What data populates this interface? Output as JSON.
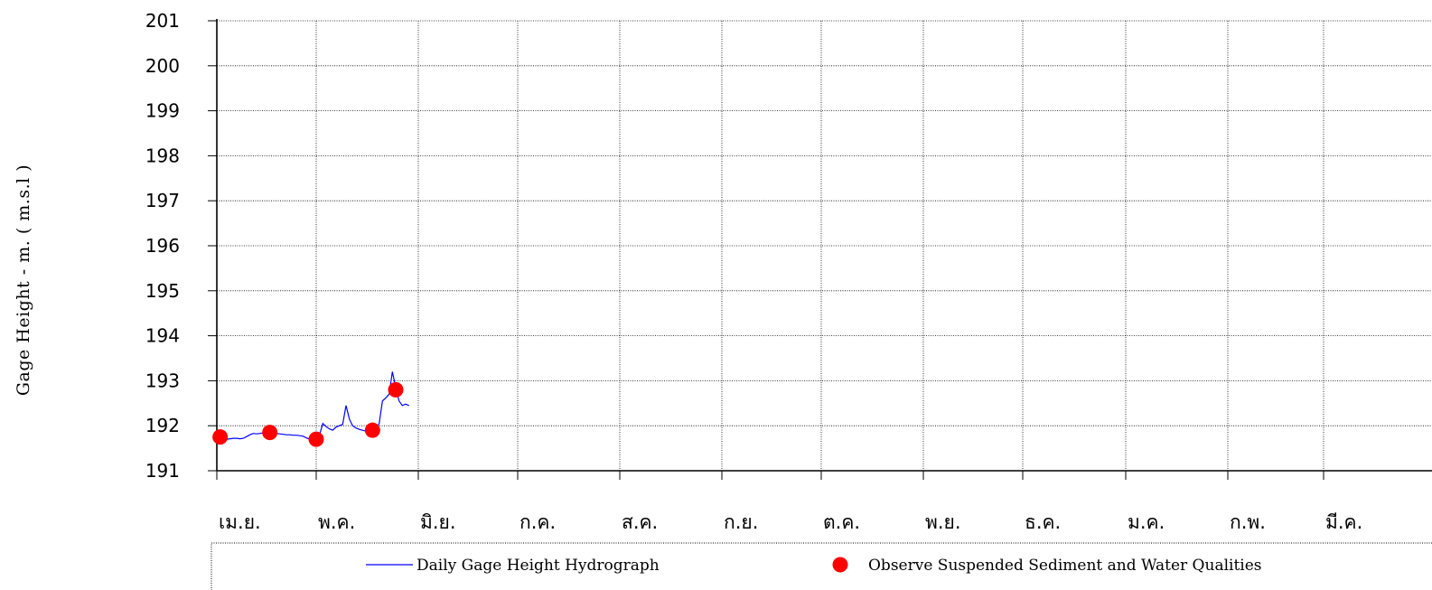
{
  "chart_data": {
    "type": "line",
    "ylabel": "Gage Height  -  m.  ( m.s.l )",
    "ylim": [
      191,
      201
    ],
    "yticks": [
      191,
      192,
      193,
      194,
      195,
      196,
      197,
      198,
      199,
      200,
      201
    ],
    "month_labels": [
      "เม.ย.",
      "พ.ค.",
      "มิ.ย.",
      "ก.ค.",
      "ส.ค.",
      "ก.ย.",
      "ต.ค.",
      "พ.ย.",
      "ธ.ค.",
      "ม.ค.",
      "ก.พ.",
      "มี.ค."
    ],
    "grid": true,
    "legend_position": "bottom",
    "colors": {
      "hydrograph": "#0000ff",
      "observations": "#ff0000",
      "grid": "#000000"
    },
    "series": [
      {
        "name": "Daily Gage Height Hydrograph",
        "type": "line",
        "x_day": [
          0,
          1,
          2,
          3,
          4,
          5,
          6,
          7,
          8,
          9,
          10,
          11,
          12,
          13,
          14,
          15,
          16,
          17,
          18,
          19,
          20,
          21,
          22,
          23,
          24,
          25,
          26,
          27,
          28,
          29,
          30,
          31,
          32,
          33,
          34,
          35,
          36,
          37,
          38,
          39,
          40,
          41,
          42,
          43,
          44,
          45,
          46,
          47,
          48,
          49,
          50,
          51,
          52,
          53,
          54,
          55,
          56,
          57,
          58
        ],
        "values": [
          191.68,
          191.69,
          191.7,
          191.7,
          191.71,
          191.72,
          191.72,
          191.71,
          191.72,
          191.76,
          191.8,
          191.83,
          191.82,
          191.83,
          191.84,
          191.85,
          191.84,
          191.83,
          191.83,
          191.82,
          191.81,
          191.8,
          191.8,
          191.79,
          191.79,
          191.78,
          191.77,
          191.73,
          191.7,
          191.7,
          191.73,
          191.8,
          192.05,
          191.98,
          191.93,
          191.9,
          191.97,
          192.0,
          192.03,
          192.45,
          192.15,
          192.0,
          191.95,
          191.92,
          191.9,
          191.88,
          191.87,
          191.88,
          191.9,
          192.05,
          192.55,
          192.62,
          192.7,
          193.2,
          192.85,
          192.55,
          192.45,
          192.48,
          192.45
        ]
      },
      {
        "name": "Observe Suspended Sediment and Water Qualities",
        "type": "scatter",
        "x_day": [
          1,
          16,
          30,
          47,
          54
        ],
        "values": [
          191.75,
          191.85,
          191.7,
          191.9,
          192.8
        ]
      }
    ]
  }
}
